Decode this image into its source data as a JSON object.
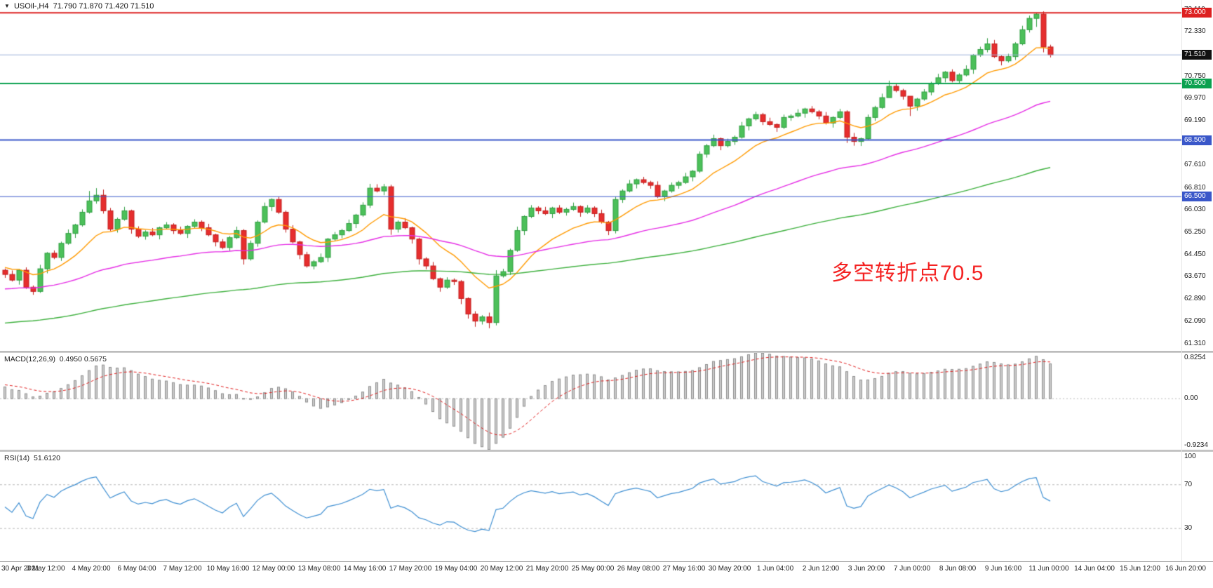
{
  "quote": {
    "symbol_period": "USOil-,H4",
    "open": "71.790",
    "high": "71.870",
    "low": "71.420",
    "close": "71.510"
  },
  "annotation": {
    "text": "多空转折点70.5",
    "color": "#f42222"
  },
  "colors": {
    "up_fill": "#4cc05a",
    "up_border": "#2f9e41",
    "down_fill": "#e62e2e",
    "down_border": "#c11d1d",
    "macd_bar_fill": "#cccccc",
    "macd_bar_border": "#8f8f8f",
    "macd_signal": "#e02020",
    "rsi_line": "#3f8fd2",
    "bid_line": "#9fb3d9",
    "bid_tag_bg": "#111111",
    "grid": "#b8b8b8",
    "axis_text": "#1a1a1a"
  },
  "chart_data": {
    "type": "candlestick",
    "title": "USOil- H4",
    "symbol": "USOil-",
    "timeframe": "H4",
    "ylim": [
      61.05,
      73.45
    ],
    "first_open": 63.9,
    "closes": [
      63.75,
      63.55,
      63.9,
      63.3,
      63.15,
      63.95,
      64.5,
      64.35,
      64.85,
      65.2,
      65.5,
      65.95,
      66.35,
      66.55,
      66.0,
      65.35,
      65.7,
      66.0,
      65.35,
      65.1,
      65.25,
      65.15,
      65.4,
      65.5,
      65.3,
      65.2,
      65.45,
      65.6,
      65.4,
      65.15,
      64.9,
      64.7,
      65.05,
      65.3,
      64.3,
      64.85,
      65.6,
      66.15,
      66.4,
      65.95,
      65.35,
      64.9,
      64.45,
      64.05,
      64.2,
      64.35,
      65.0,
      65.15,
      65.3,
      65.55,
      65.85,
      66.2,
      66.8,
      66.7,
      66.85,
      65.35,
      65.6,
      65.4,
      65.0,
      64.3,
      64.05,
      63.6,
      63.3,
      63.55,
      63.5,
      62.9,
      62.35,
      62.1,
      62.25,
      62.05,
      63.7,
      63.85,
      64.6,
      65.3,
      65.8,
      66.1,
      66.0,
      65.9,
      66.1,
      65.95,
      66.05,
      66.15,
      65.95,
      66.1,
      65.9,
      65.6,
      65.3,
      66.4,
      66.7,
      66.95,
      67.1,
      67.0,
      66.9,
      66.5,
      66.7,
      66.9,
      67.0,
      67.2,
      67.4,
      68.0,
      68.3,
      68.55,
      68.3,
      68.45,
      68.6,
      69.0,
      69.25,
      69.4,
      69.15,
      69.05,
      68.95,
      69.3,
      69.35,
      69.45,
      69.6,
      69.5,
      69.35,
      69.1,
      69.3,
      69.5,
      68.6,
      68.45,
      68.55,
      69.3,
      69.65,
      70.0,
      70.4,
      70.25,
      70.05,
      69.7,
      69.95,
      70.2,
      70.5,
      70.7,
      70.9,
      70.6,
      70.8,
      71.0,
      71.5,
      71.7,
      71.9,
      71.45,
      71.3,
      71.45,
      71.9,
      72.4,
      72.8,
      72.95,
      71.79,
      71.51
    ],
    "wick_up_pattern": [
      0.06,
      0.14,
      0.04,
      0.1
    ],
    "wick_dn_pattern": [
      0.12,
      0.05,
      0.16,
      0.06
    ],
    "wick_overrides": {
      "12": [
        66.7,
        65.9
      ],
      "13": [
        66.8,
        66.25
      ],
      "14": [
        66.75,
        65.9
      ],
      "34": [
        65.35,
        64.1
      ],
      "52": [
        66.95,
        66.1
      ],
      "54": [
        66.95,
        66.55
      ],
      "55": [
        66.92,
        65.15
      ],
      "59": [
        65.05,
        64.1
      ],
      "65": [
        63.55,
        62.7
      ],
      "67": [
        62.45,
        61.9
      ],
      "69": [
        62.4,
        61.85
      ],
      "70": [
        63.9,
        61.95
      ],
      "87": [
        66.5,
        65.2
      ],
      "120": [
        69.55,
        68.4
      ],
      "121": [
        68.75,
        68.3
      ],
      "126": [
        70.6,
        70.2
      ],
      "129": [
        69.8,
        69.35
      ],
      "140": [
        72.1,
        71.6
      ],
      "146": [
        72.9,
        72.3
      ],
      "147": [
        73.0,
        72.5
      ],
      "148": [
        73.05,
        71.6
      ],
      "149": [
        71.87,
        71.42
      ]
    },
    "prehistory": {
      "count": 120,
      "start": 59.5,
      "end": 64.3,
      "wiggle": 0.18
    },
    "ma": [
      {
        "name": "ma-fast",
        "period": 13,
        "color": "#ff9a00"
      },
      {
        "name": "ma-mid",
        "period": 55,
        "color": "#e52ee5"
      },
      {
        "name": "ma-slow",
        "period": 140,
        "color": "#3db03d"
      }
    ],
    "levels": [
      {
        "price": 73.0,
        "label": "73.000",
        "color": "#dd2020",
        "width": 2
      },
      {
        "price": 70.5,
        "label": "70.500",
        "color": "#0aa14f",
        "width": 2
      },
      {
        "price": 68.5,
        "label": "68.500",
        "color": "#3a57c9",
        "width": 2
      },
      {
        "price": 66.5,
        "label": "66.500",
        "color": "#3a57c9",
        "width": 1
      }
    ],
    "bid": {
      "price": 71.51,
      "label": "71.510"
    },
    "price_axis_labels": [
      "73.110",
      "72.330",
      "71.550",
      "70.750",
      "69.970",
      "69.190",
      "68.390",
      "67.610",
      "66.810",
      "66.030",
      "65.250",
      "64.450",
      "63.670",
      "62.890",
      "62.090",
      "61.310"
    ],
    "macd": {
      "label": "MACD(12,26,9)",
      "values_text": "0.4950 0.5675",
      "fast": 12,
      "slow": 26,
      "signal": 9,
      "axis_max": "0.8254",
      "axis_zero": "0.00",
      "axis_min": "-0.9234"
    },
    "rsi": {
      "label": "RSI(14)",
      "value_text": "51.6120",
      "period": 14,
      "levels": [
        70,
        30
      ],
      "axis_labels": [
        "100",
        "70",
        "30"
      ]
    },
    "time_labels": [
      "30 Apr 2021",
      "3 May 12:00",
      "4 May 20:00",
      "6 May 04:00",
      "7 May 12:00",
      "10 May 16:00",
      "12 May 00:00",
      "13 May 08:00",
      "14 May 16:00",
      "17 May 20:00",
      "19 May 04:00",
      "20 May 12:00",
      "21 May 20:00",
      "25 May 00:00",
      "26 May 08:00",
      "27 May 16:00",
      "30 May 20:00",
      "1 Jun 04:00",
      "2 Jun 12:00",
      "3 Jun 20:00",
      "7 Jun 00:00",
      "8 Jun 08:00",
      "9 Jun 16:00",
      "11 Jun 00:00",
      "14 Jun 04:00",
      "15 Jun 12:00",
      "16 Jun 20:00"
    ]
  }
}
